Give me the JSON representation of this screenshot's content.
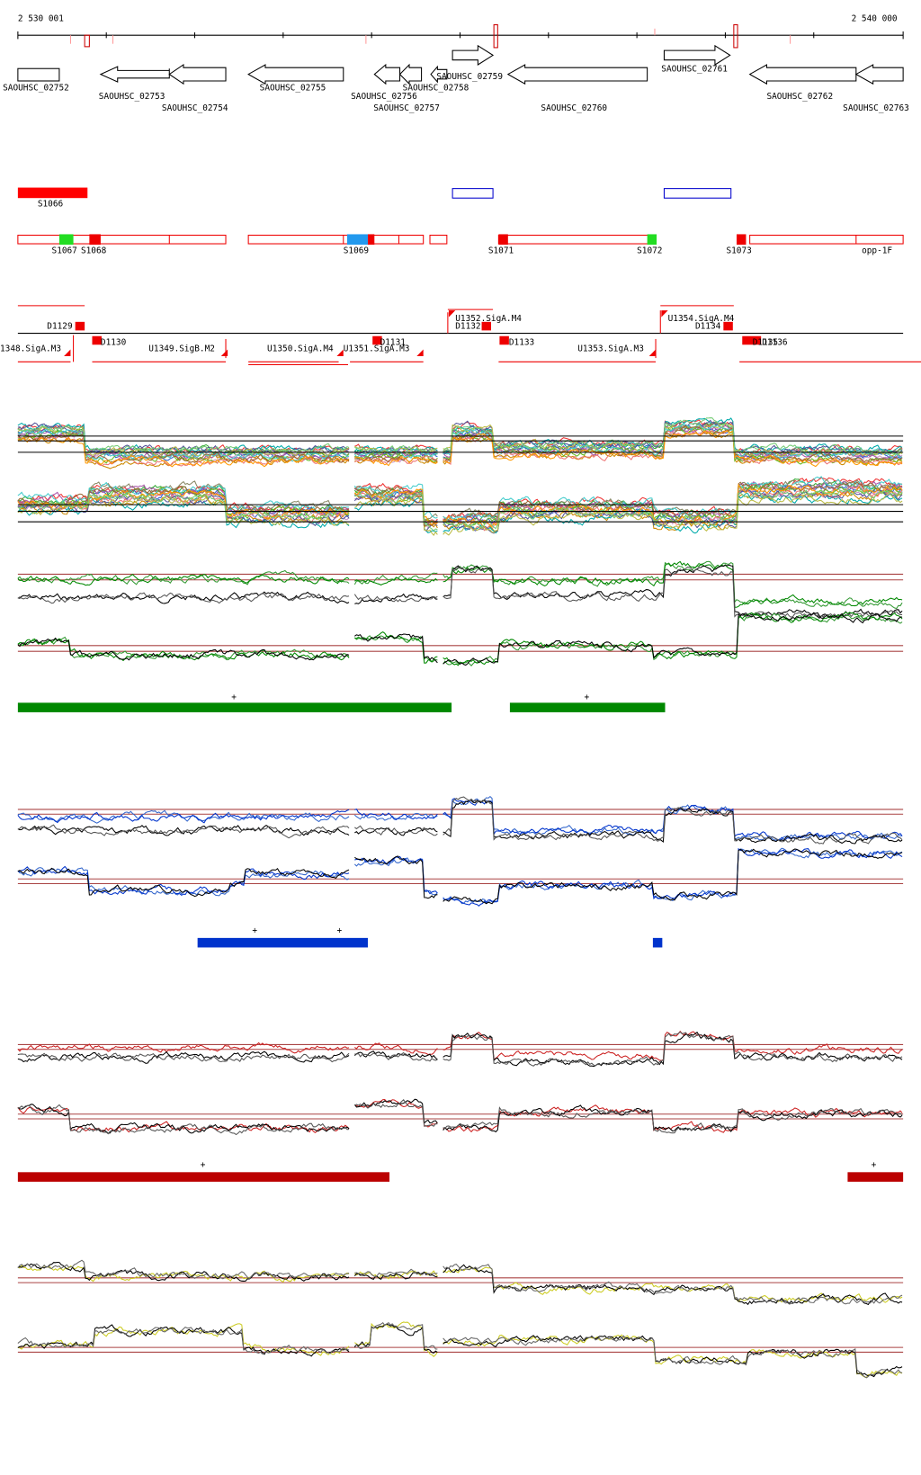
{
  "ruler": {
    "start": "2 530 001",
    "end": "2 540 000"
  },
  "genes": [
    "SAOUHSC_02752",
    "SAOUHSC_02753",
    "SAOUHSC_02754",
    "SAOUHSC_02755",
    "SAOUHSC_02756",
    "SAOUHSC_02757",
    "SAOUHSC_02758",
    "SAOUHSC_02759",
    "SAOUHSC_02760",
    "SAOUHSC_02761",
    "SAOUHSC_02762",
    "SAOUHSC_02763"
  ],
  "features": [
    "S1066",
    "S1067",
    "S1068",
    "S1069",
    "S1071",
    "S1072",
    "S1073",
    "opp-1F"
  ],
  "segments": [
    "D1129",
    "D1130",
    "1348.SigA.M3",
    "U1349.SigB.M2",
    "U1350.SigA.M4",
    "U1351.SigA.M3",
    "D1131",
    "U1352.SigA.M4",
    "D1132",
    "D1133",
    "U1353.SigA.M3",
    "U1354.SigA.M4",
    "D1134",
    "D1135",
    "D1136"
  ],
  "green_marks": [
    "+",
    "+"
  ],
  "blue_marks": [
    "+",
    "+"
  ],
  "red_marks": [
    "+",
    "+"
  ]
}
